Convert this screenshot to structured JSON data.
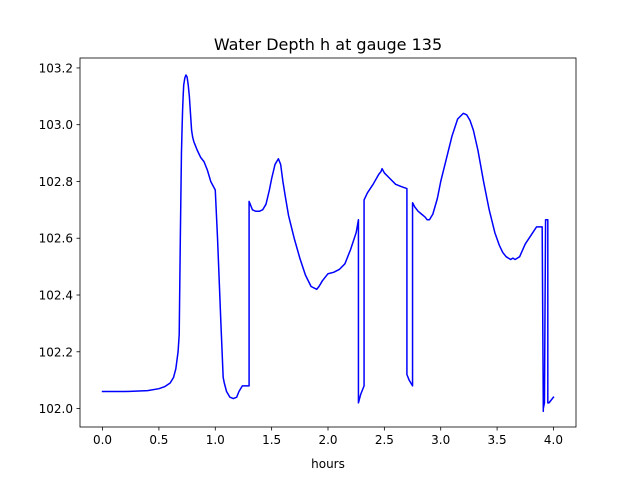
{
  "chart_data": {
    "type": "line",
    "title": "Water Depth h at gauge 135",
    "xlabel": "hours",
    "ylabel": "",
    "xlim": [
      -0.2,
      4.2
    ],
    "ylim": [
      101.935,
      103.235
    ],
    "xticks": [
      0.0,
      0.5,
      1.0,
      1.5,
      2.0,
      2.5,
      3.0,
      3.5,
      4.0
    ],
    "xtick_labels": [
      "0.0",
      "0.5",
      "1.0",
      "1.5",
      "2.0",
      "2.5",
      "3.0",
      "3.5",
      "4.0"
    ],
    "yticks": [
      102.0,
      102.2,
      102.4,
      102.6,
      102.8,
      103.0,
      103.2
    ],
    "ytick_labels": [
      "102.0",
      "102.2",
      "102.4",
      "102.6",
      "102.8",
      "103.0",
      "103.2"
    ],
    "grid": false,
    "series": [
      {
        "color": "#0000ff",
        "x": [
          0.0,
          0.2,
          0.4,
          0.5,
          0.55,
          0.6,
          0.63,
          0.65,
          0.67,
          0.68,
          0.69,
          0.7,
          0.705,
          0.71,
          0.715,
          0.72,
          0.73,
          0.74,
          0.75,
          0.76,
          0.77,
          0.78,
          0.79,
          0.8,
          0.81,
          0.82,
          0.84,
          0.87,
          0.9,
          0.93,
          0.96,
          1.0,
          1.02,
          1.05,
          1.07,
          1.07,
          1.08,
          1.1,
          1.13,
          1.16,
          1.19,
          1.21,
          1.24,
          1.27,
          1.3,
          1.3,
          1.31,
          1.33,
          1.36,
          1.39,
          1.42,
          1.45,
          1.48,
          1.5,
          1.53,
          1.56,
          1.58,
          1.59,
          1.6,
          1.62,
          1.65,
          1.7,
          1.75,
          1.8,
          1.85,
          1.9,
          1.92,
          1.95,
          2.0,
          2.05,
          2.1,
          2.15,
          2.2,
          2.25,
          2.27,
          2.27,
          2.29,
          2.32,
          2.32,
          2.35,
          2.4,
          2.45,
          2.47,
          2.48,
          2.5,
          2.55,
          2.6,
          2.65,
          2.7,
          2.7,
          2.72,
          2.75,
          2.75,
          2.77,
          2.8,
          2.83,
          2.86,
          2.88,
          2.9,
          2.93,
          2.97,
          3.0,
          3.05,
          3.1,
          3.15,
          3.2,
          3.23,
          3.26,
          3.29,
          3.33,
          3.38,
          3.43,
          3.48,
          3.52,
          3.55,
          3.58,
          3.6,
          3.62,
          3.64,
          3.66,
          3.68,
          3.7,
          3.75,
          3.8,
          3.85,
          3.9,
          3.91,
          3.91,
          3.92,
          3.93,
          3.93,
          3.95,
          3.95,
          3.96,
          4.0
        ],
        "y": [
          102.06,
          102.06,
          102.063,
          102.07,
          102.077,
          102.09,
          102.11,
          102.14,
          102.2,
          102.26,
          102.6,
          102.9,
          102.98,
          103.05,
          103.1,
          103.14,
          103.165,
          103.175,
          103.168,
          103.14,
          103.1,
          103.04,
          102.98,
          102.955,
          102.94,
          102.93,
          102.91,
          102.885,
          102.87,
          102.84,
          102.8,
          102.77,
          102.6,
          102.3,
          102.11,
          102.11,
          102.09,
          102.06,
          102.04,
          102.035,
          102.04,
          102.06,
          102.08,
          102.08,
          102.08,
          102.73,
          102.72,
          102.7,
          102.695,
          102.695,
          102.7,
          102.72,
          102.77,
          102.81,
          102.86,
          102.88,
          102.86,
          102.83,
          102.8,
          102.75,
          102.68,
          102.6,
          102.53,
          102.47,
          102.43,
          102.42,
          102.43,
          102.45,
          102.475,
          102.48,
          102.49,
          102.51,
          102.56,
          102.62,
          102.665,
          102.02,
          102.05,
          102.08,
          102.735,
          102.76,
          102.79,
          102.825,
          102.835,
          102.845,
          102.83,
          102.81,
          102.79,
          102.782,
          102.775,
          102.12,
          102.1,
          102.08,
          102.725,
          102.71,
          102.695,
          102.685,
          102.675,
          102.665,
          102.665,
          102.685,
          102.74,
          102.8,
          102.88,
          102.96,
          103.02,
          103.04,
          103.035,
          103.015,
          102.98,
          102.91,
          102.8,
          102.7,
          102.62,
          102.575,
          102.55,
          102.535,
          102.53,
          102.525,
          102.53,
          102.525,
          102.53,
          102.535,
          102.58,
          102.61,
          102.64,
          102.64,
          101.99,
          102.0,
          102.02,
          102.66,
          102.665,
          102.665,
          102.02,
          102.02,
          102.04
        ]
      }
    ]
  }
}
